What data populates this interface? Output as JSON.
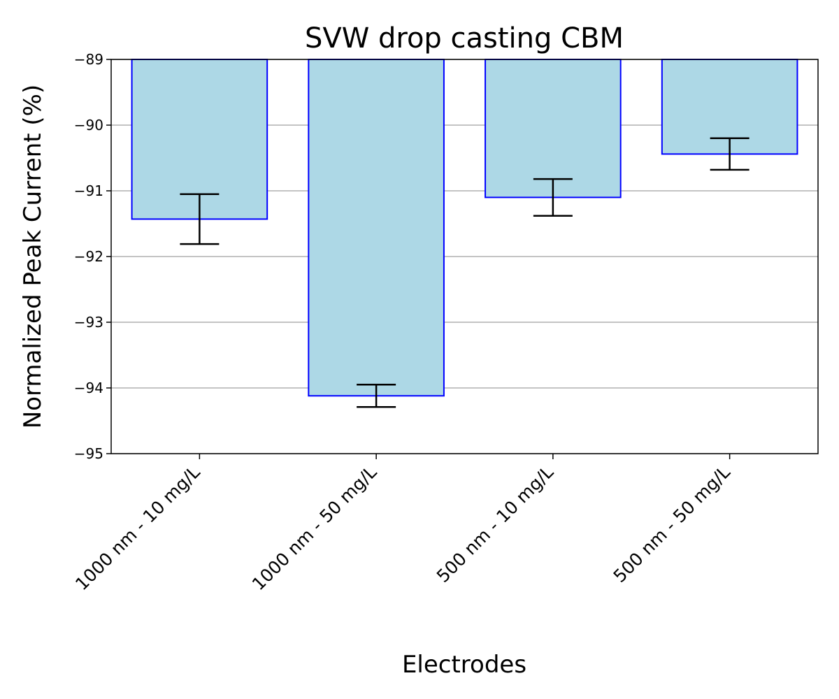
{
  "chart_data": {
    "type": "bar",
    "title": "SVW drop casting CBM",
    "xlabel": "Electrodes",
    "ylabel": "Normalized Peak Current (%)",
    "categories": [
      "1000 nm - 10 mg/L",
      "1000 nm - 50 mg/L",
      "500 nm - 10 mg/L",
      "500 nm - 50 mg/L"
    ],
    "values": [
      -91.43,
      -94.12,
      -91.1,
      -90.44
    ],
    "errors": [
      0.38,
      0.17,
      0.28,
      0.24
    ],
    "ylim": [
      -95,
      -89
    ],
    "yticks": [
      -89,
      -90,
      -91,
      -92,
      -93,
      -94,
      -95
    ],
    "ytick_labels": [
      "−89",
      "−90",
      "−91",
      "−92",
      "−93",
      "−94",
      "−95"
    ],
    "grid": "horizontal",
    "legend": "none",
    "colors": {
      "bar_fill": "#add8e6",
      "bar_edge": "#0000ff",
      "error_bar": "#000000",
      "grid": "#b0b0b0"
    }
  }
}
